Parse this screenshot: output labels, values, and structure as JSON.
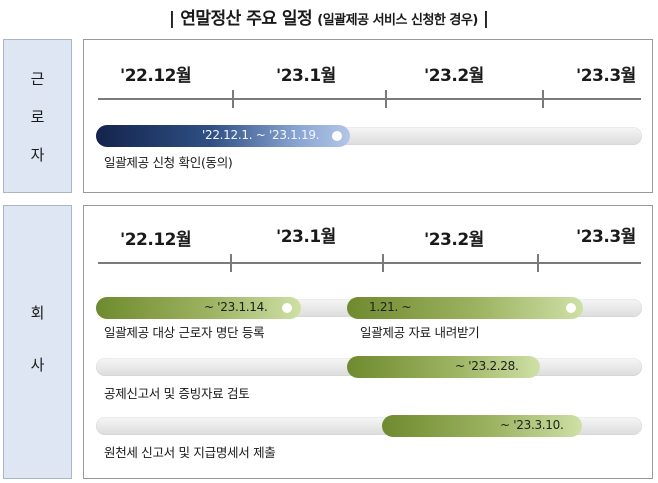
{
  "title": {
    "main": "연말정산 주요 일정",
    "sub": "(일괄제공 서비스 신청한 경우)"
  },
  "sections": {
    "worker": {
      "label_chars": [
        "근",
        "로",
        "자"
      ],
      "months": [
        "'22.12월",
        "'23.1월",
        "'23.2월",
        "'23.3월"
      ],
      "bars": [
        {
          "fill_text": "'22.12.1. ~ '23.1.19.",
          "caption": "일괄제공 신청 확인(동의)"
        }
      ]
    },
    "company": {
      "label_chars": [
        "회",
        "사"
      ],
      "months": [
        "'22.12월",
        "'23.1월",
        "'23.2월",
        "'23.3월"
      ],
      "bars": [
        {
          "fill_text": "~ '23.1.14.",
          "caption": "일괄제공 대상 근로자 명단 등록"
        },
        {
          "fill_text": "1.21. ~",
          "caption": "일괄제공 자료 내려받기"
        },
        {
          "fill_text": "~ '23.2.28.",
          "caption": "공제신고서 및 증빙자료 검토"
        },
        {
          "fill_text": "~ '23.3.10.",
          "caption": "원천세 신고서 및 지급명세서 제출"
        }
      ]
    }
  },
  "colors": {
    "worker_bar": "#1f3766",
    "company_bar": "#7f9a3c",
    "side_bg": "#dde6f2"
  }
}
